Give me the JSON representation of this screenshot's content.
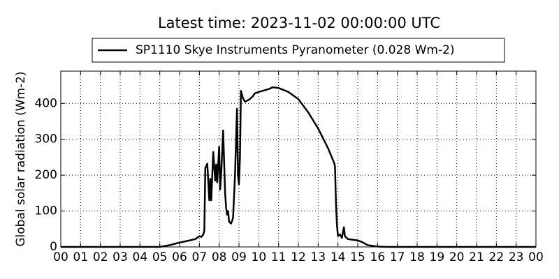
{
  "chart_data": {
    "type": "line",
    "title": "Latest time: 2023-11-02 00:00:00 UTC",
    "y_label": "Global solar radiation (Wm-2)",
    "x": [
      0,
      5.0,
      5.5,
      6.0,
      6.5,
      6.8,
      7.0,
      7.1,
      7.2,
      7.25,
      7.3,
      7.4,
      7.5,
      7.55,
      7.6,
      7.7,
      7.8,
      7.85,
      7.9,
      8.0,
      8.05,
      8.1,
      8.2,
      8.3,
      8.35,
      8.4,
      8.45,
      8.5,
      8.6,
      8.7,
      8.8,
      8.9,
      8.95,
      9.0,
      9.05,
      9.1,
      9.2,
      9.3,
      9.5,
      9.7,
      9.8,
      10.0,
      10.5,
      10.7,
      11.0,
      11.5,
      12.0,
      12.5,
      13.0,
      13.5,
      13.8,
      13.85,
      13.9,
      13.95,
      14.0,
      14.1,
      14.2,
      14.3,
      14.35,
      14.5,
      15.0,
      15.2,
      15.5,
      16.0,
      16.5,
      24
    ],
    "series": [
      {
        "name": "SP1110 Skye Instruments Pyranometer (0.028 Wm-2)",
        "color": "#000000",
        "values": [
          0,
          0,
          5,
          12,
          18,
          22,
          30,
          28,
          35,
          45,
          220,
          232,
          130,
          190,
          130,
          265,
          185,
          230,
          180,
          280,
          160,
          200,
          325,
          150,
          110,
          90,
          100,
          70,
          65,
          80,
          200,
          385,
          200,
          175,
          250,
          435,
          415,
          405,
          410,
          420,
          428,
          432,
          440,
          445,
          443,
          432,
          412,
          375,
          330,
          275,
          235,
          225,
          120,
          60,
          30,
          35,
          25,
          55,
          30,
          22,
          18,
          14,
          5,
          1,
          0,
          0
        ]
      }
    ],
    "xlim": [
      0,
      24
    ],
    "ylim": [
      0,
      490
    ],
    "xticks": [
      {
        "value": 0,
        "label": "00"
      },
      {
        "value": 1,
        "label": "01"
      },
      {
        "value": 2,
        "label": "02"
      },
      {
        "value": 3,
        "label": "03"
      },
      {
        "value": 4,
        "label": "04"
      },
      {
        "value": 5,
        "label": "05"
      },
      {
        "value": 6,
        "label": "06"
      },
      {
        "value": 7,
        "label": "07"
      },
      {
        "value": 8,
        "label": "08"
      },
      {
        "value": 9,
        "label": "09"
      },
      {
        "value": 10,
        "label": "10"
      },
      {
        "value": 11,
        "label": "11"
      },
      {
        "value": 12,
        "label": "12"
      },
      {
        "value": 13,
        "label": "13"
      },
      {
        "value": 14,
        "label": "14"
      },
      {
        "value": 15,
        "label": "15"
      },
      {
        "value": 16,
        "label": "16"
      },
      {
        "value": 17,
        "label": "17"
      },
      {
        "value": 18,
        "label": "18"
      },
      {
        "value": 19,
        "label": "19"
      },
      {
        "value": 20,
        "label": "20"
      },
      {
        "value": 21,
        "label": "21"
      },
      {
        "value": 22,
        "label": "22"
      },
      {
        "value": 23,
        "label": "23"
      },
      {
        "value": 24,
        "label": "00"
      }
    ],
    "yticks": [
      0,
      100,
      200,
      300,
      400
    ],
    "grid": true,
    "legend": "upper center"
  }
}
